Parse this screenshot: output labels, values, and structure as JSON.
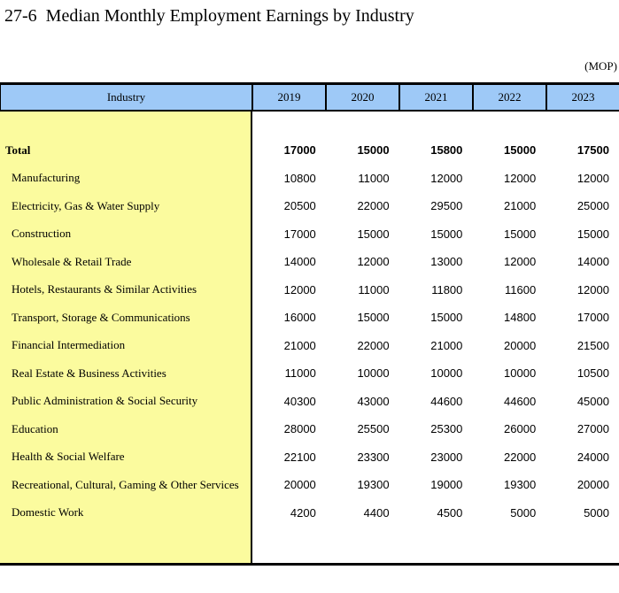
{
  "title": "27-6  Median Monthly Employment Earnings by Industry",
  "unit_label": "(MOP)",
  "colors": {
    "header_bg": "#9EC9F7",
    "industry_column_bg": "#FBFB9E",
    "border": "#000000"
  },
  "table": {
    "header": {
      "industry": "Industry",
      "years": [
        "2019",
        "2020",
        "2021",
        "2022",
        "2023"
      ]
    },
    "rows": [
      {
        "name": "Total",
        "bold": true,
        "values": [
          "17000",
          "15000",
          "15800",
          "15000",
          "17500"
        ]
      },
      {
        "name": "Manufacturing",
        "values": [
          "10800",
          "11000",
          "12000",
          "12000",
          "12000"
        ]
      },
      {
        "name": "Electricity, Gas & Water Supply",
        "values": [
          "20500",
          "22000",
          "29500",
          "21000",
          "25000"
        ]
      },
      {
        "name": "Construction",
        "values": [
          "17000",
          "15000",
          "15000",
          "15000",
          "15000"
        ]
      },
      {
        "name": "Wholesale & Retail Trade",
        "values": [
          "14000",
          "12000",
          "13000",
          "12000",
          "14000"
        ]
      },
      {
        "name": "Hotels, Restaurants & Similar Activities",
        "values": [
          "12000",
          "11000",
          "11800",
          "11600",
          "12000"
        ]
      },
      {
        "name": "Transport, Storage & Communications",
        "values": [
          "16000",
          "15000",
          "15000",
          "14800",
          "17000"
        ]
      },
      {
        "name": "Financial Intermediation",
        "values": [
          "21000",
          "22000",
          "21000",
          "20000",
          "21500"
        ]
      },
      {
        "name": "Real Estate & Business Activities",
        "values": [
          "11000",
          "10000",
          "10000",
          "10000",
          "10500"
        ]
      },
      {
        "name": "Public Administration & Social Security",
        "values": [
          "40300",
          "43000",
          "44600",
          "44600",
          "45000"
        ]
      },
      {
        "name": "Education",
        "values": [
          "28000",
          "25500",
          "25300",
          "26000",
          "27000"
        ]
      },
      {
        "name": "Health & Social Welfare",
        "values": [
          "22100",
          "23300",
          "23000",
          "22000",
          "24000"
        ]
      },
      {
        "name": "Recreational, Cultural, Gaming & Other Services",
        "values": [
          "20000",
          "19300",
          "19000",
          "19300",
          "20000"
        ]
      },
      {
        "name": "Domestic Work",
        "values": [
          "4200",
          "4400",
          "4500",
          "5000",
          "5000"
        ]
      }
    ]
  }
}
